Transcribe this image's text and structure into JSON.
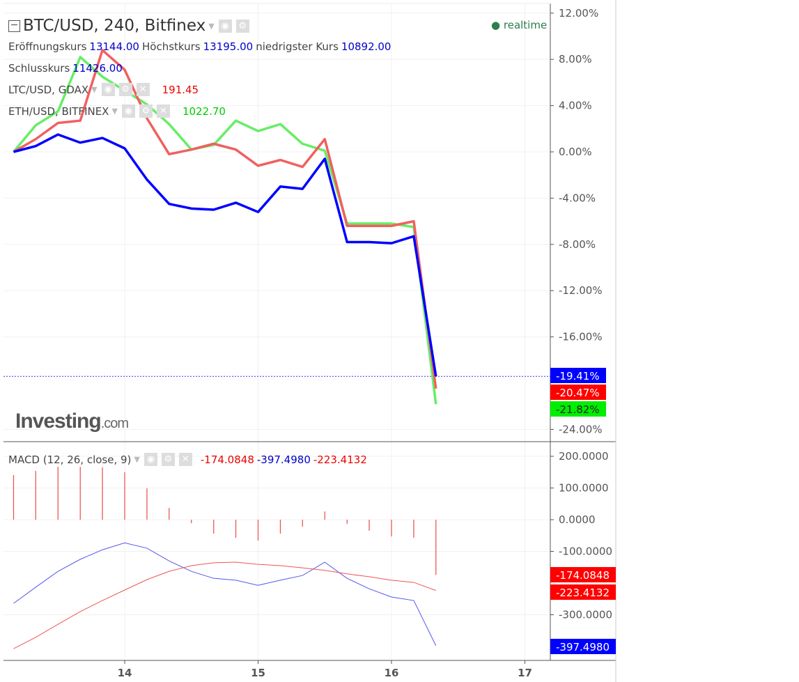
{
  "header": {
    "title": "BTC/USD, 240, Bitfinex",
    "realtime": "realtime",
    "open_label": "Eröffnungskurs",
    "open": "13144.00",
    "high_label": "Höchstkurs",
    "high": "13195.00",
    "low_label": "niedrigster Kurs",
    "low": "10892.00",
    "close_label": "Schlusskurs",
    "close": "11426.00",
    "ltc_label": "LTC/USD, GDAX",
    "ltc_value": "191.45",
    "eth_label": "ETH/USD, BITFINEX",
    "eth_value": "1022.70",
    "macd_label": "MACD (12, 26, close, 9)",
    "macd_hist": "-174.0848",
    "macd_line": "-397.4980",
    "macd_signal": "-223.4132"
  },
  "logo": {
    "main": "Investing",
    "suffix": ".com"
  },
  "colors": {
    "btc": "#0000ff",
    "ltc": "#f06060",
    "eth": "#66ee66",
    "macd_line": "#5555ee",
    "signal": "#ee5555",
    "hist": "#ee5555"
  },
  "chart_data": [
    {
      "type": "line",
      "yunit": "%",
      "ylim": [
        -26,
        13
      ],
      "yticks": [
        "12.00%",
        "8.00%",
        "4.00%",
        "0.00%",
        "-4.00%",
        "-8.00%",
        "-12.00%",
        "-16.00%",
        "-24.00%"
      ],
      "ytick_values": [
        12,
        8,
        4,
        0,
        -4,
        -8,
        -12,
        -16,
        -24
      ],
      "x": [
        13.167,
        13.333,
        13.5,
        13.667,
        13.833,
        14,
        14.167,
        14.333,
        14.5,
        14.667,
        14.833,
        15,
        15.167,
        15.333,
        15.5,
        15.667,
        15.833,
        16,
        16.167,
        16.333
      ],
      "series": [
        {
          "name": "BTC/USD",
          "color": "#0000ff",
          "values": [
            0,
            0.5,
            1.5,
            0.8,
            1.2,
            0.3,
            -2.4,
            -4.5,
            -4.9,
            -5.0,
            -4.4,
            -5.2,
            -3.0,
            -3.2,
            -0.6,
            -7.8,
            -7.8,
            -7.9,
            -7.3,
            -19.41
          ],
          "last_label": "-19.41%"
        },
        {
          "name": "LTC/USD",
          "color": "#f06060",
          "values": [
            0,
            1.1,
            2.5,
            2.7,
            8.8,
            7.1,
            2.9,
            -0.2,
            0.2,
            0.7,
            0.2,
            -1.2,
            -0.7,
            -1.3,
            1.1,
            -6.4,
            -6.4,
            -6.4,
            -6.0,
            -20.47
          ],
          "last_label": "-20.47%"
        },
        {
          "name": "ETH/USD",
          "color": "#66ee66",
          "values": [
            0,
            2.3,
            3.5,
            8.2,
            6.5,
            5.3,
            4.1,
            2.4,
            0.2,
            0.6,
            2.7,
            1.8,
            2.4,
            0.7,
            0.1,
            -6.2,
            -6.2,
            -6.2,
            -6.5,
            -21.82
          ],
          "last_label": "-21.82%"
        }
      ]
    },
    {
      "type": "bar+line",
      "title": "MACD (12, 26, close, 9)",
      "ylim": [
        -440,
        220
      ],
      "yticks": [
        "200.0000",
        "100.0000",
        "0.0000",
        "-100.0000",
        "-300.0000"
      ],
      "ytick_values": [
        200,
        100,
        0,
        -100,
        -300
      ],
      "histogram": [
        141,
        154,
        167,
        167,
        165,
        150,
        99,
        37,
        -11,
        -44,
        -57,
        -66,
        -44,
        -22,
        26,
        -13,
        -35,
        -53,
        -57,
        -174.0848
      ],
      "macd": [
        -264,
        -213,
        -163,
        -125,
        -95,
        -73,
        -90,
        -130,
        -163,
        -185,
        -191,
        -207,
        -191,
        -176,
        -134,
        -185,
        -218,
        -244,
        -255,
        -397.498
      ],
      "signal": [
        -407,
        -371,
        -330,
        -290,
        -255,
        -222,
        -189,
        -163,
        -145,
        -136,
        -134,
        -141,
        -145,
        -152,
        -160,
        -171,
        -180,
        -191,
        -198,
        -223.4132
      ],
      "last_labels": [
        "-174.0848",
        "-223.4132",
        "-397.4980"
      ]
    },
    {
      "type": "x-axis",
      "ticks": [
        "14",
        "15",
        "16",
        "17"
      ],
      "tick_values": [
        14,
        15,
        16,
        17
      ]
    }
  ]
}
